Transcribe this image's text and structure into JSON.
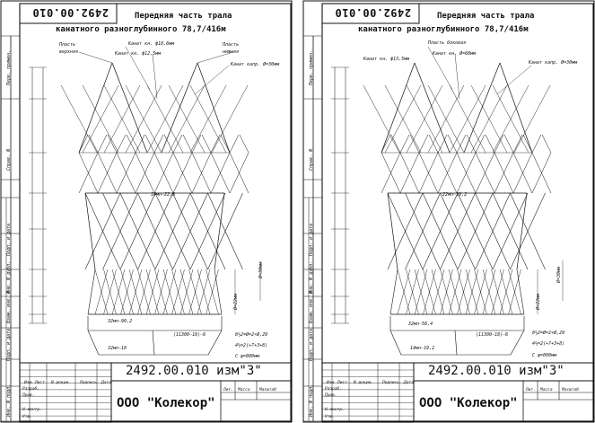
{
  "sheets": [
    {
      "code_top": "2492.00.010",
      "title_line1": "Передняя часть трала",
      "title_line2": "канатного разноглубинного 78,7/416м",
      "labels": {
        "face_top": "Пласть верхняя",
        "face_bottom": "Пласть нижняя",
        "rope1": "Канат кн. ф18,6мм",
        "rope2": "Канат кн. ф12,5мм",
        "rope3": "Канат капр. Ø=30мм",
        "dim_a": "14мп—22,8",
        "dim_b": "32мп—90,2",
        "dim_c": "32мп—18",
        "dim_d": "(11300—18)—6",
        "dim_e": "8½2=Ø=2×Ø,29",
        "dim_f": "4½=2(+7+3+8)",
        "dim_g": "С ψ=800мм",
        "dim_h": "Ø=22мм",
        "dim_i": "Ø=30мм"
      },
      "doc_number": "2492.00.010 изм\"3\"",
      "org": "ООО \"Колекор\"",
      "tb": {
        "izm": "Изм",
        "list": "Лист",
        "ndok": "N докум.",
        "podp": "Подпись",
        "data": "Дата",
        "razrab": "Разраб.",
        "prov": "Пров.",
        "nkontr": "Н.контр.",
        "utv": "Утв.",
        "lit": "Лит.",
        "massa": "Масса",
        "masshtab": "Масштаб"
      },
      "side": [
        "Перв. примен.",
        "Справ. N",
        "Подп. и дата",
        "Инв. N дубл.",
        "Взам. инв. N",
        "Подп. и дата",
        "Инв. N подл."
      ]
    },
    {
      "code_top": "2492.00.010",
      "title_line1": "Передняя часть трала",
      "title_line2": "канатного разноглубинного 78,7/416м",
      "labels": {
        "face_top": "Пласть боковая",
        "face_bottom": "",
        "rope1": "Канат кн. ф13,5мм",
        "rope2": "Канат кн. Ø=60мм",
        "rope3": "Канат капр. Ø=30мм",
        "dim_a": "22мп—19,2",
        "dim_b": "32мп—58,4",
        "dim_c": "14мп—19,2",
        "dim_d": "(11300—18)—6",
        "dim_e": "8½2=Ø=2×Ø,29",
        "dim_f": "4½=2(+7+3+8)",
        "dim_g": "С ψ=800мм",
        "dim_h": "Ø=22мм",
        "dim_i": "Ø=30мм"
      },
      "doc_number": "2492.00.010 изм\"3\"",
      "org": "ООО \"Колекор\"",
      "tb": {
        "izm": "Изм",
        "list": "Лист",
        "ndok": "N докум.",
        "podp": "Подпись",
        "data": "Дата",
        "razrab": "Разраб.",
        "prov": "Пров.",
        "nkontr": "Н.контр.",
        "utv": "Утв.",
        "lit": "Лит.",
        "massa": "Масса",
        "masshtab": "Масштаб"
      },
      "side": [
        "Перв. примен.",
        "Справ. N",
        "Подп. и дата",
        "Инв. N дубл.",
        "Взам. инв. N",
        "Подп. и дата",
        "Инв. N подл."
      ]
    }
  ]
}
